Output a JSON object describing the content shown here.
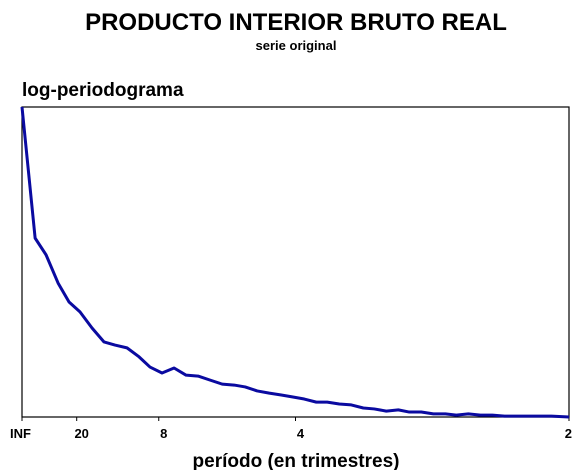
{
  "chart_data": {
    "type": "line",
    "title": "PRODUCTO INTERIOR BRUTO REAL",
    "subtitle": "serie original",
    "y_label": "log-periodograma",
    "x_label": "período (en trimestres)",
    "x": [
      0,
      0.012,
      0.022,
      0.033,
      0.043,
      0.053,
      0.064,
      0.075,
      0.085,
      0.096,
      0.107,
      0.117,
      0.128,
      0.139,
      0.15,
      0.161,
      0.172,
      0.183,
      0.194,
      0.204,
      0.215,
      0.226,
      0.237,
      0.247,
      0.258,
      0.269,
      0.279,
      0.29,
      0.301,
      0.312,
      0.322,
      0.333,
      0.344,
      0.354,
      0.365,
      0.376,
      0.387,
      0.397,
      0.408,
      0.419,
      0.43,
      0.441,
      0.451,
      0.462,
      0.473,
      0.484,
      0.5
    ],
    "series": [
      {
        "name": "log-periodograma",
        "color": "#0a0aa0",
        "values": [
          100,
          57.7,
          52.3,
          43.2,
          37.1,
          33.9,
          28.7,
          24.2,
          23.2,
          22.3,
          19.4,
          16.1,
          14.2,
          15.8,
          13.5,
          13.2,
          11.9,
          10.6,
          10.3,
          9.7,
          8.4,
          7.7,
          7.1,
          6.5,
          5.8,
          4.8,
          4.8,
          4.2,
          3.9,
          2.9,
          2.6,
          1.9,
          2.3,
          1.6,
          1.6,
          1.0,
          1.0,
          0.6,
          1.0,
          0.6,
          0.6,
          0.3,
          0.3,
          0.3,
          0.3,
          0.3,
          0
        ]
      }
    ],
    "xlim": [
      0,
      0.5
    ],
    "ylim": [
      0,
      100
    ],
    "xticks": [
      {
        "value": 0,
        "label": "INF"
      },
      {
        "value": 0.05,
        "label": "20"
      },
      {
        "value": 0.125,
        "label": "8"
      },
      {
        "value": 0.25,
        "label": "4"
      },
      {
        "value": 0.5,
        "label": "2"
      }
    ]
  }
}
